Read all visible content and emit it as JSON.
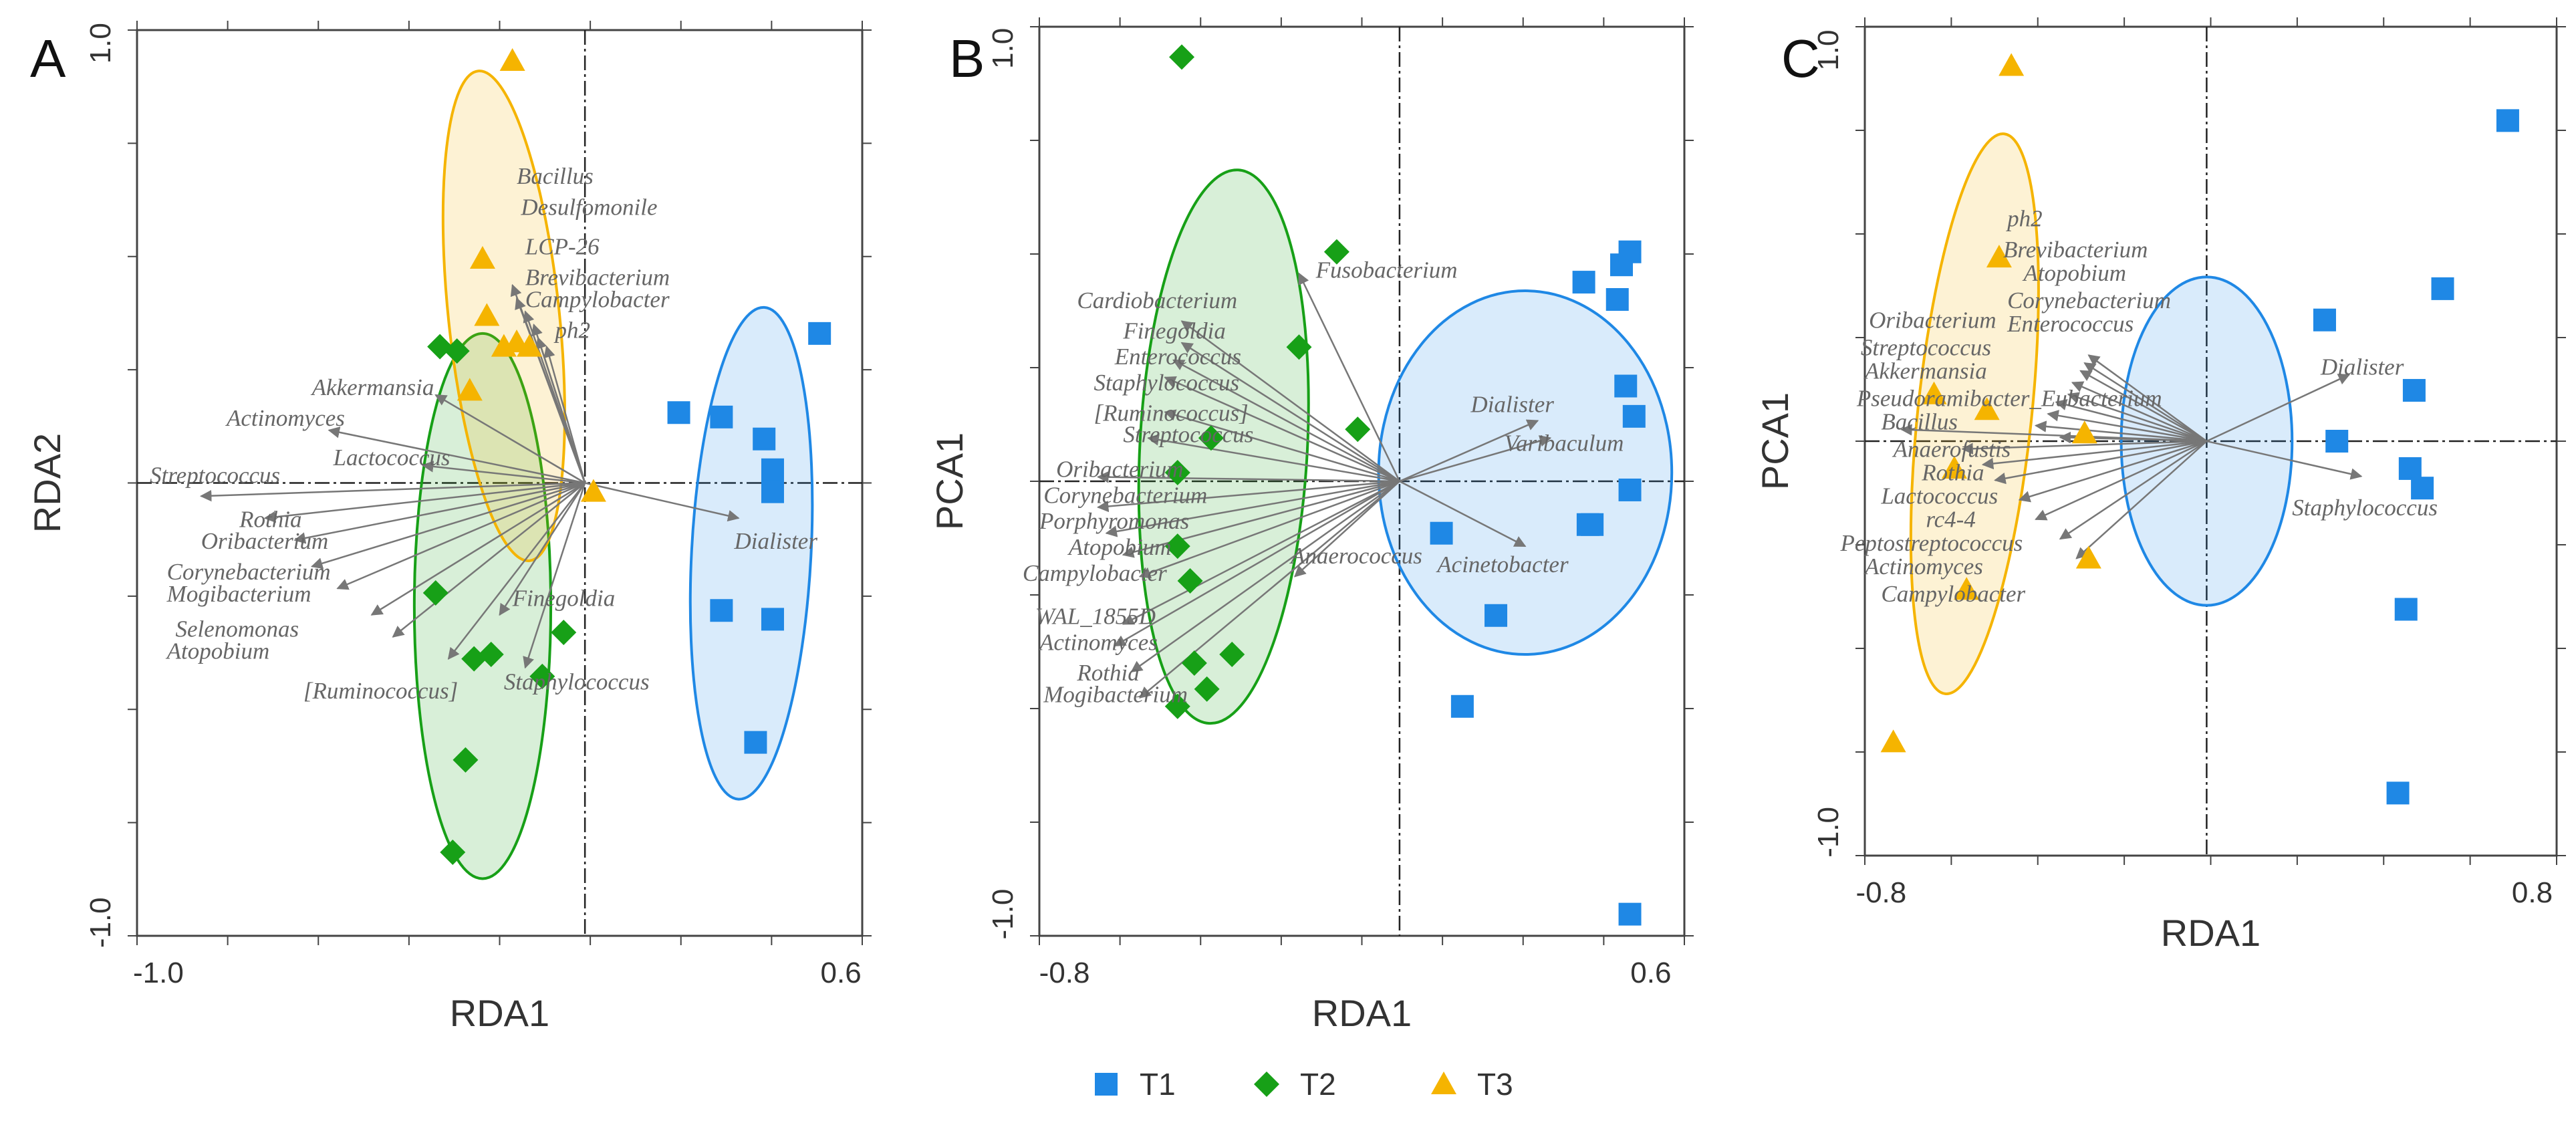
{
  "colors": {
    "T1": "#1f88e5",
    "T2": "#17a017",
    "T3": "#f5b400",
    "arrow": "#777777",
    "frame": "#444444"
  },
  "legend": [
    {
      "group": "T1",
      "label": "T1",
      "marker": "square"
    },
    {
      "group": "T2",
      "label": "T2",
      "marker": "diamond"
    },
    {
      "group": "T3",
      "label": "T3",
      "marker": "triangle"
    }
  ],
  "chart_data": [
    {
      "type": "scatter",
      "panel": "A",
      "xlabel": "RDA1",
      "ylabel": "RDA2",
      "xlim": [
        -1.05,
        0.65
      ],
      "ylim": [
        -1.03,
        1.03
      ],
      "xticks": [
        {
          "value": -1.0,
          "label": "-1.0"
        },
        {
          "value": 0.6,
          "label": "0.6"
        }
      ],
      "yticks": [
        {
          "value": 1.0,
          "label": "1.0"
        },
        {
          "value": -1.0,
          "label": "-1.0"
        }
      ],
      "groups": {
        "T1": [
          [
            0.22,
            0.16
          ],
          [
            0.32,
            0.15
          ],
          [
            0.42,
            0.1
          ],
          [
            0.44,
            0.03
          ],
          [
            0.44,
            -0.02
          ],
          [
            0.55,
            0.34
          ],
          [
            0.32,
            -0.29
          ],
          [
            0.44,
            -0.31
          ],
          [
            0.4,
            -0.59
          ]
        ],
        "T2": [
          [
            -0.34,
            0.31
          ],
          [
            -0.3,
            0.3
          ],
          [
            -0.35,
            -0.25
          ],
          [
            -0.26,
            -0.4
          ],
          [
            -0.22,
            -0.39
          ],
          [
            -0.1,
            -0.44
          ],
          [
            -0.05,
            -0.34
          ],
          [
            -0.28,
            -0.63
          ],
          [
            -0.31,
            -0.84
          ]
        ],
        "T3": [
          [
            -0.17,
            0.96
          ],
          [
            -0.24,
            0.51
          ],
          [
            -0.23,
            0.38
          ],
          [
            -0.16,
            0.32
          ],
          [
            -0.13,
            0.31
          ],
          [
            -0.19,
            0.31
          ],
          [
            -0.27,
            0.21
          ],
          [
            0.02,
            -0.02
          ]
        ]
      },
      "ellipses": [
        {
          "group": "T1",
          "cx": 0.39,
          "cy": -0.16,
          "rx": 0.14,
          "ry": 0.56,
          "angle": 3
        },
        {
          "group": "T2",
          "cx": -0.24,
          "cy": -0.28,
          "rx": 0.16,
          "ry": 0.62,
          "angle": 0
        },
        {
          "group": "T3",
          "cx": -0.19,
          "cy": 0.38,
          "rx": 0.13,
          "ry": 0.56,
          "angle": -6
        }
      ],
      "species": [
        {
          "name": "Bacillus",
          "tip": [
            -0.17,
            0.45
          ],
          "label": [
            -0.16,
            0.68
          ]
        },
        {
          "name": "Desulfomonile",
          "tip": [
            -0.16,
            0.42
          ],
          "label": [
            -0.15,
            0.61
          ]
        },
        {
          "name": "LCP-26",
          "tip": [
            -0.14,
            0.39
          ],
          "label": [
            -0.14,
            0.52
          ]
        },
        {
          "name": "Brevibacterium",
          "tip": [
            -0.12,
            0.36
          ],
          "label": [
            -0.14,
            0.45
          ]
        },
        {
          "name": "Campylobacter",
          "tip": [
            -0.11,
            0.33
          ],
          "label": [
            -0.14,
            0.4
          ]
        },
        {
          "name": "ph2",
          "tip": [
            -0.09,
            0.31
          ],
          "label": [
            -0.07,
            0.33
          ]
        },
        {
          "name": "Akkermansia",
          "tip": [
            -0.35,
            0.2
          ],
          "label": [
            -0.64,
            0.2
          ]
        },
        {
          "name": "Actinomyces",
          "tip": [
            -0.6,
            0.12
          ],
          "label": [
            -0.84,
            0.13
          ]
        },
        {
          "name": "Lactococcus",
          "tip": [
            -0.38,
            0.04
          ],
          "label": [
            -0.59,
            0.04
          ]
        },
        {
          "name": "Streptococcus",
          "tip": [
            -0.9,
            -0.03
          ],
          "label": [
            -1.02,
            0.0
          ]
        },
        {
          "name": "Rothia",
          "tip": [
            -0.75,
            -0.08
          ],
          "label": [
            -0.81,
            -0.1
          ]
        },
        {
          "name": "Oribacterium",
          "tip": [
            -0.68,
            -0.13
          ],
          "label": [
            -0.9,
            -0.15
          ]
        },
        {
          "name": "Corynebacterium",
          "tip": [
            -0.64,
            -0.19
          ],
          "label": [
            -0.98,
            -0.22
          ]
        },
        {
          "name": "Mogibacterium",
          "tip": [
            -0.58,
            -0.24
          ],
          "label": [
            -0.98,
            -0.27
          ]
        },
        {
          "name": "Selenomonas",
          "tip": [
            -0.5,
            -0.3
          ],
          "label": [
            -0.96,
            -0.35
          ]
        },
        {
          "name": "Atopobium",
          "tip": [
            -0.45,
            -0.35
          ],
          "label": [
            -0.98,
            -0.4
          ]
        },
        {
          "name": "[Ruminococcus]",
          "tip": [
            -0.32,
            -0.4
          ],
          "label": [
            -0.66,
            -0.49
          ]
        },
        {
          "name": "Finegoldia",
          "tip": [
            -0.2,
            -0.3
          ],
          "label": [
            -0.17,
            -0.28
          ]
        },
        {
          "name": "Staphylococcus",
          "tip": [
            -0.14,
            -0.42
          ],
          "label": [
            -0.19,
            -0.47
          ]
        },
        {
          "name": "Dialister",
          "tip": [
            0.36,
            -0.08
          ],
          "label": [
            0.35,
            -0.15
          ]
        }
      ]
    },
    {
      "type": "scatter",
      "panel": "B",
      "xlabel": "RDA1",
      "ylabel": "PCA1",
      "xlim": [
        -0.86,
        0.68
      ],
      "ylim": [
        -1.05,
        1.05
      ],
      "xticks": [
        {
          "value": -0.8,
          "label": "-0.8"
        },
        {
          "value": 0.6,
          "label": "0.6"
        }
      ],
      "yticks": [
        {
          "value": 1.0,
          "label": "1.0"
        },
        {
          "value": -1.0,
          "label": "-1.0"
        }
      ],
      "groups": {
        "T1": [
          [
            0.44,
            0.46
          ],
          [
            0.53,
            0.5
          ],
          [
            0.52,
            0.42
          ],
          [
            0.55,
            0.53
          ],
          [
            0.54,
            0.22
          ],
          [
            0.56,
            0.15
          ],
          [
            0.55,
            -0.02
          ],
          [
            0.45,
            -0.1
          ],
          [
            0.46,
            -0.1
          ],
          [
            0.1,
            -0.12
          ],
          [
            0.23,
            -0.31
          ],
          [
            0.15,
            -0.52
          ],
          [
            0.55,
            -1.0
          ]
        ],
        "T2": [
          [
            -0.52,
            0.98
          ],
          [
            -0.15,
            0.53
          ],
          [
            -0.24,
            0.31
          ],
          [
            -0.1,
            0.12
          ],
          [
            -0.45,
            0.1
          ],
          [
            -0.53,
            0.02
          ],
          [
            -0.53,
            -0.15
          ],
          [
            -0.5,
            -0.23
          ],
          [
            -0.49,
            -0.42
          ],
          [
            -0.4,
            -0.4
          ],
          [
            -0.46,
            -0.48
          ],
          [
            -0.53,
            -0.52
          ]
        ],
        "T3": []
      },
      "ellipses": [
        {
          "group": "T1",
          "cx": 0.3,
          "cy": 0.02,
          "rx": 0.35,
          "ry": 0.42,
          "angle": 0
        },
        {
          "group": "T2",
          "cx": -0.42,
          "cy": 0.08,
          "rx": 0.2,
          "ry": 0.64,
          "angle": 3
        }
      ],
      "species": [
        {
          "name": "Fusobacterium",
          "tip": [
            -0.24,
            0.48
          ],
          "label": [
            -0.2,
            0.47
          ]
        },
        {
          "name": "Cardiobacterium",
          "tip": [
            -0.52,
            0.37
          ],
          "label": [
            -0.77,
            0.4
          ]
        },
        {
          "name": "Finegoldia",
          "tip": [
            -0.52,
            0.32
          ],
          "label": [
            -0.66,
            0.33
          ]
        },
        {
          "name": "Enterococcus",
          "tip": [
            -0.54,
            0.28
          ],
          "label": [
            -0.68,
            0.27
          ]
        },
        {
          "name": "Staphylococcus",
          "tip": [
            -0.56,
            0.24
          ],
          "label": [
            -0.73,
            0.21
          ]
        },
        {
          "name": "[Ruminococcus]",
          "tip": [
            -0.56,
            0.16
          ],
          "label": [
            -0.73,
            0.14
          ]
        },
        {
          "name": "Streptococcus",
          "tip": [
            -0.6,
            0.1
          ],
          "label": [
            -0.66,
            0.09
          ]
        },
        {
          "name": "Oribacterium",
          "tip": [
            -0.72,
            0.01
          ],
          "label": [
            -0.82,
            0.01
          ]
        },
        {
          "name": "Corynebacterium",
          "tip": [
            -0.72,
            -0.06
          ],
          "label": [
            -0.85,
            -0.05
          ]
        },
        {
          "name": "Porphyromonas",
          "tip": [
            -0.7,
            -0.12
          ],
          "label": [
            -0.86,
            -0.11
          ]
        },
        {
          "name": "Atopobium",
          "tip": [
            -0.66,
            -0.17
          ],
          "label": [
            -0.79,
            -0.17
          ]
        },
        {
          "name": "Campylobacter",
          "tip": [
            -0.62,
            -0.22
          ],
          "label": [
            -0.9,
            -0.23
          ]
        },
        {
          "name": "Anaerococcus",
          "tip": [
            -0.25,
            -0.22
          ],
          "label": [
            -0.26,
            -0.19
          ]
        },
        {
          "name": "WAL_1855D",
          "tip": [
            -0.66,
            -0.33
          ],
          "label": [
            -0.87,
            -0.33
          ]
        },
        {
          "name": "Actinomyces",
          "tip": [
            -0.68,
            -0.38
          ],
          "label": [
            -0.86,
            -0.39
          ]
        },
        {
          "name": "Rothia",
          "tip": [
            -0.64,
            -0.44
          ],
          "label": [
            -0.77,
            -0.46
          ]
        },
        {
          "name": "Mogibacterium",
          "tip": [
            -0.62,
            -0.5
          ],
          "label": [
            -0.85,
            -0.51
          ]
        },
        {
          "name": "Dialister",
          "tip": [
            0.33,
            0.14
          ],
          "label": [
            0.17,
            0.16
          ]
        },
        {
          "name": "Varibaculum",
          "tip": [
            0.36,
            0.1
          ],
          "label": [
            0.25,
            0.07
          ]
        },
        {
          "name": "Acinetobacter",
          "tip": [
            0.3,
            -0.15
          ],
          "label": [
            0.09,
            -0.21
          ]
        }
      ]
    },
    {
      "type": "scatter",
      "panel": "C",
      "xlabel": "RDA1",
      "ylabel": "PCA1",
      "xlim": [
        -0.84,
        0.86
      ],
      "ylim": [
        -1.06,
        1.06
      ],
      "xticks": [
        {
          "value": -0.8,
          "label": "-0.8"
        },
        {
          "value": 0.8,
          "label": "0.8"
        }
      ],
      "yticks": [
        {
          "value": 1.0,
          "label": "1.0"
        },
        {
          "value": -1.0,
          "label": "-1.0"
        }
      ],
      "groups": {
        "T1": [
          [
            0.74,
            0.82
          ],
          [
            0.58,
            0.39
          ],
          [
            0.29,
            0.31
          ],
          [
            0.51,
            0.13
          ],
          [
            0.32,
            0.0
          ],
          [
            0.5,
            -0.07
          ],
          [
            0.53,
            -0.12
          ],
          [
            0.49,
            -0.43
          ],
          [
            0.47,
            -0.9
          ]
        ],
        "T3": [
          [
            -0.48,
            0.96
          ],
          [
            -0.51,
            0.47
          ],
          [
            -0.67,
            0.12
          ],
          [
            -0.54,
            0.08
          ],
          [
            -0.3,
            0.02
          ],
          [
            -0.62,
            -0.07
          ],
          [
            -0.29,
            -0.3
          ],
          [
            -0.59,
            -0.38
          ],
          [
            -0.77,
            -0.77
          ]
        ],
        "T2": []
      },
      "ellipses": [
        {
          "group": "T1",
          "cx": 0.0,
          "cy": 0.0,
          "rx": 0.21,
          "ry": 0.42,
          "angle": 0
        },
        {
          "group": "T3",
          "cx": -0.57,
          "cy": 0.07,
          "rx": 0.14,
          "ry": 0.72,
          "angle": 6
        }
      ],
      "species": [
        {
          "name": "ph2",
          "tip": [
            -0.29,
            0.22
          ],
          "label": [
            -0.49,
            0.55
          ]
        },
        {
          "name": "Brevibacterium",
          "tip": [
            -0.3,
            0.2
          ],
          "label": [
            -0.5,
            0.47
          ]
        },
        {
          "name": "Atopobium",
          "tip": [
            -0.31,
            0.18
          ],
          "label": [
            -0.45,
            0.41
          ]
        },
        {
          "name": "Corynebacterium",
          "tip": [
            -0.33,
            0.15
          ],
          "label": [
            -0.49,
            0.34
          ]
        },
        {
          "name": "Enterococcus",
          "tip": [
            -0.34,
            0.12
          ],
          "label": [
            -0.49,
            0.28
          ]
        },
        {
          "name": "Oribacterium",
          "tip": [
            -0.37,
            0.1
          ],
          "label": [
            -0.83,
            0.29
          ]
        },
        {
          "name": "Streptococcus",
          "tip": [
            -0.39,
            0.07
          ],
          "label": [
            -0.85,
            0.22
          ]
        },
        {
          "name": "Akkermansia",
          "tip": [
            -0.42,
            0.04
          ],
          "label": [
            -0.84,
            0.16
          ]
        },
        {
          "name": "Pseudoramibacter_Eubacterium",
          "tip": [
            -0.36,
            0.01
          ],
          "label": [
            -0.86,
            0.09
          ]
        },
        {
          "name": "Bacillus",
          "tip": [
            -0.75,
            0.03
          ],
          "label": [
            -0.8,
            0.03
          ]
        },
        {
          "name": "Anaerofustis",
          "tip": [
            -0.6,
            -0.02
          ],
          "label": [
            -0.77,
            -0.04
          ]
        },
        {
          "name": "Rothia",
          "tip": [
            -0.55,
            -0.06
          ],
          "label": [
            -0.7,
            -0.1
          ]
        },
        {
          "name": "Lactococcus",
          "tip": [
            -0.52,
            -0.1
          ],
          "label": [
            -0.8,
            -0.16
          ]
        },
        {
          "name": "rc4-4",
          "tip": [
            -0.46,
            -0.15
          ],
          "label": [
            -0.69,
            -0.22
          ]
        },
        {
          "name": "Peptostreptococcus",
          "tip": [
            -0.42,
            -0.2
          ],
          "label": [
            -0.9,
            -0.28
          ]
        },
        {
          "name": "Actinomyces",
          "tip": [
            -0.36,
            -0.25
          ],
          "label": [
            -0.84,
            -0.34
          ]
        },
        {
          "name": "Campylobacter",
          "tip": [
            -0.32,
            -0.3
          ],
          "label": [
            -0.8,
            -0.41
          ]
        },
        {
          "name": "Dialister",
          "tip": [
            0.35,
            0.17
          ],
          "label": [
            0.28,
            0.17
          ]
        },
        {
          "name": "Staphylococcus",
          "tip": [
            0.38,
            -0.09
          ],
          "label": [
            0.21,
            -0.19
          ]
        }
      ]
    }
  ]
}
